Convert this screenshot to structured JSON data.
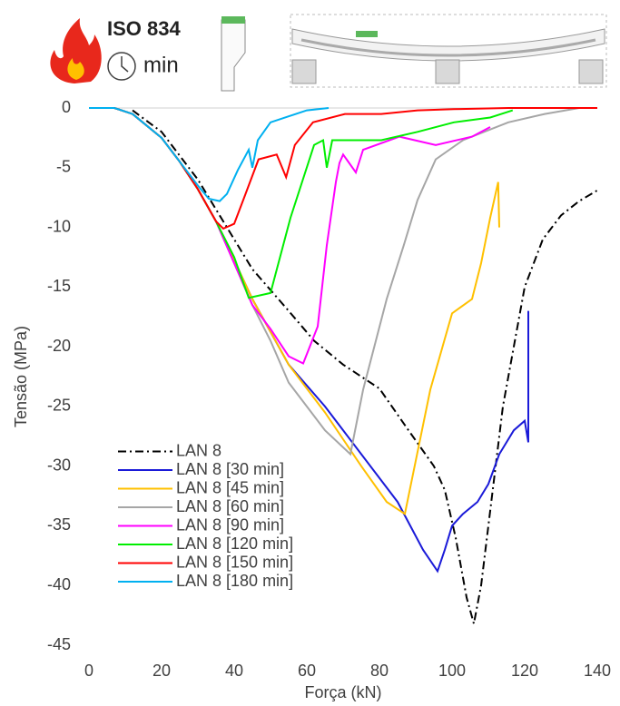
{
  "header": {
    "standard": "ISO 834",
    "unit": "min"
  },
  "chart_data": {
    "type": "line",
    "xlabel": "Força (kN)",
    "ylabel": "Tensão (MPa)",
    "xlim": [
      0,
      140
    ],
    "xticks": [
      0,
      20,
      40,
      60,
      80,
      100,
      120,
      140
    ],
    "ylim": [
      -45,
      0
    ],
    "yticks": [
      0,
      -5,
      -10,
      -15,
      -20,
      -25,
      -30,
      -35,
      -40,
      -45
    ],
    "grid": false,
    "legend": "lower left",
    "series": [
      {
        "name": "LAN 8",
        "color": "#000000",
        "style": "dashdot",
        "x": [
          12,
          20,
          30,
          38,
          45,
          55,
          62,
          70,
          80,
          88,
          95,
          98,
          101,
          104,
          106,
          108,
          110,
          112,
          114,
          117,
          120,
          125,
          130,
          135,
          140
        ],
        "values": [
          -0.2,
          -2,
          -6,
          -10,
          -13.5,
          -17,
          -19.5,
          -21.5,
          -23.5,
          -27,
          -30,
          -32,
          -36,
          -41,
          -43.2,
          -40,
          -35,
          -30,
          -25,
          -20,
          -15,
          -11,
          -9,
          -7.8,
          -6.9
        ]
      },
      {
        "name": "LAN 8 [30 min]",
        "color": "#1a1ad8",
        "style": "solid",
        "x": [
          0,
          7,
          12,
          20,
          25,
          30,
          35,
          45,
          55,
          65,
          75,
          85,
          92,
          96,
          98,
          100,
          103,
          107,
          110,
          113,
          117,
          120,
          121,
          121
        ],
        "values": [
          0,
          0,
          -0.5,
          -2.5,
          -4.5,
          -6.8,
          -9.5,
          -16,
          -21.5,
          -25,
          -29,
          -33,
          -37,
          -38.8,
          -37,
          -35,
          -34,
          -33,
          -31.5,
          -29,
          -27,
          -26.2,
          -28,
          -17
        ]
      },
      {
        "name": "LAN 8 [45 min]",
        "color": "#ffc000",
        "style": "solid",
        "x": [
          0,
          7,
          12,
          20,
          25,
          30,
          35,
          45,
          55,
          65,
          75,
          82,
          87,
          94,
          100,
          105.5,
          108,
          110.5,
          112.7,
          113
        ],
        "values": [
          0,
          0,
          -0.5,
          -2.5,
          -4.5,
          -6.8,
          -9.5,
          -16,
          -21.5,
          -25.5,
          -30,
          -33,
          -34,
          -23.6,
          -17.2,
          -16,
          -13,
          -9.2,
          -6.2,
          -10
        ]
      },
      {
        "name": "LAN 8 [60 min]",
        "color": "#a6a6a6",
        "style": "solid",
        "x": [
          0,
          7,
          12,
          20,
          25,
          30,
          35,
          45,
          50,
          55,
          60,
          65,
          72,
          75.5,
          82,
          86.7,
          90.5,
          95.5,
          103,
          115.5,
          125.5,
          135
        ],
        "values": [
          0,
          0,
          -0.5,
          -2.5,
          -4.5,
          -6.8,
          -9.5,
          -16.5,
          -19.5,
          -23,
          -25,
          -27,
          -29,
          -23.6,
          -16,
          -11.5,
          -7.7,
          -4.3,
          -2.7,
          -1.2,
          -0.5,
          0
        ]
      },
      {
        "name": "LAN 8 [90 min]",
        "color": "#ff00ff",
        "style": "solid",
        "x": [
          0,
          7,
          12,
          20,
          25,
          30,
          35,
          45,
          50,
          55,
          59,
          63,
          65.5,
          68,
          69,
          70,
          73.5,
          75.5,
          85.5,
          95.5,
          105.5,
          110.5
        ],
        "values": [
          0,
          0,
          -0.5,
          -2.5,
          -4.5,
          -6.8,
          -9.5,
          -16.5,
          -18.5,
          -20.8,
          -21.4,
          -18.3,
          -11.5,
          -6.2,
          -4.6,
          -3.9,
          -5.4,
          -3.5,
          -2.4,
          -3.1,
          -2.4,
          -1.6
        ]
      },
      {
        "name": "LAN 8 [120 min]",
        "color": "#00ee00",
        "style": "solid",
        "x": [
          0,
          7,
          12,
          20,
          25,
          30,
          35,
          40,
          44,
          50,
          55.5,
          62,
          64.5,
          65.5,
          67,
          70.5,
          80.5,
          90.5,
          100.5,
          110.5,
          116.7
        ],
        "values": [
          0,
          0,
          -0.5,
          -2.5,
          -4.5,
          -6.8,
          -9.5,
          -12.5,
          -15.9,
          -15.5,
          -9.2,
          -3.1,
          -2.7,
          -5,
          -2.7,
          -2.7,
          -2.7,
          -2,
          -1.2,
          -0.8,
          -0.2
        ]
      },
      {
        "name": "LAN 8 [150 min]",
        "color": "#ff0000",
        "style": "solid",
        "x": [
          0,
          7,
          12,
          20,
          25,
          30,
          35,
          37,
          40,
          43,
          46.7,
          51.7,
          54.3,
          56.7,
          61.7,
          70.5,
          80.5,
          90.5,
          100.5,
          115.5,
          140
        ],
        "values": [
          0,
          0,
          -0.5,
          -2.5,
          -4.5,
          -6.8,
          -9.5,
          -10.1,
          -9.7,
          -7.3,
          -4.3,
          -3.9,
          -5.8,
          -3.1,
          -1.2,
          -0.5,
          -0.5,
          -0.2,
          -0.1,
          0,
          0
        ]
      },
      {
        "name": "LAN 8 [180 min]",
        "color": "#00b0f0",
        "style": "solid",
        "x": [
          0,
          7,
          12,
          20,
          25,
          30,
          33,
          36,
          38,
          41,
          44,
          45,
          46.5,
          50,
          55,
          60,
          66
        ],
        "values": [
          0,
          0,
          -0.5,
          -2.5,
          -4.5,
          -6.5,
          -7.6,
          -7.8,
          -7.2,
          -5.2,
          -3.5,
          -5,
          -2.7,
          -1.2,
          -0.7,
          -0.2,
          0
        ]
      }
    ]
  }
}
